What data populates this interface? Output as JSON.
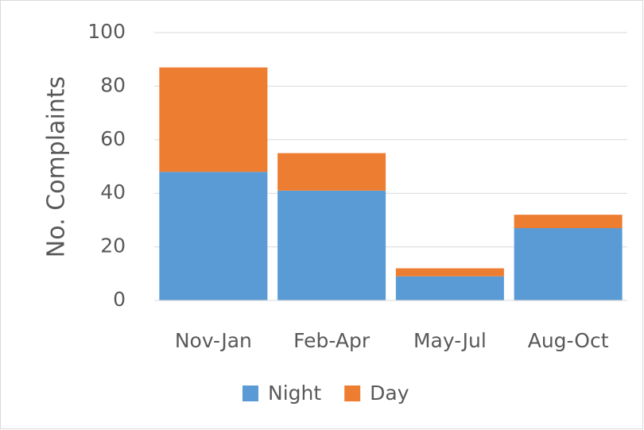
{
  "chart_data": {
    "type": "stacked_bar",
    "y_label": "No. Complaints",
    "categories": [
      "Nov-Jan",
      "Feb-Apr",
      "May-Jul",
      "Aug-Oct"
    ],
    "series": [
      {
        "name": "Night",
        "color": "#5b9bd5",
        "values": [
          48,
          41,
          9,
          27
        ]
      },
      {
        "name": "Day",
        "color": "#ed7d31",
        "values": [
          39,
          14,
          3,
          5
        ]
      }
    ],
    "ylim": [
      0,
      100
    ],
    "yticks": [
      0,
      20,
      40,
      60,
      80,
      100
    ],
    "grid": true,
    "legend": "bottom"
  }
}
